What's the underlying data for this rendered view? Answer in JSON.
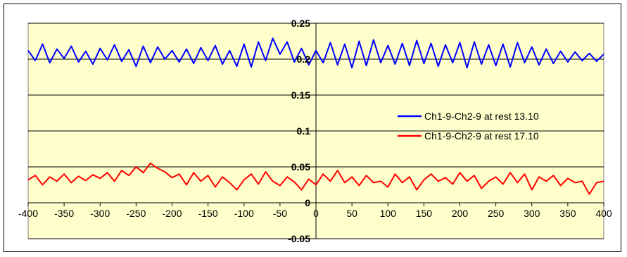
{
  "chart_data": {
    "type": "line",
    "x_axis": {
      "range": [
        -400,
        400
      ],
      "ticks": [
        -400,
        -350,
        -300,
        -250,
        -200,
        -150,
        -100,
        -50,
        0,
        50,
        100,
        150,
        200,
        250,
        300,
        350,
        400
      ],
      "tick_labels": [
        "-400",
        "-350",
        "-300",
        "-250",
        "-200",
        "-150",
        "-100",
        "-50",
        "0",
        "50",
        "100",
        "150",
        "200",
        "250",
        "300",
        "350",
        "400"
      ]
    },
    "y_axis": {
      "range": [
        -0.05,
        0.25
      ],
      "ticks": [
        -0.05,
        0,
        0.05,
        0.1,
        0.15,
        0.2,
        0.25
      ],
      "tick_labels": [
        "-0.05",
        "0",
        "0.05",
        "0.1",
        "0.15",
        "0.2",
        "0.25"
      ],
      "grid": true
    },
    "plot_background": "#FFFFCC",
    "grid_color": "#000000",
    "legend": {
      "position": "right"
    },
    "series": [
      {
        "name": "Ch1-9-Ch2-9 at rest 13.10",
        "color": "#0000FF",
        "x": [
          -400,
          -390,
          -380,
          -370,
          -360,
          -350,
          -340,
          -330,
          -320,
          -310,
          -300,
          -290,
          -280,
          -270,
          -260,
          -250,
          -240,
          -230,
          -220,
          -210,
          -200,
          -190,
          -180,
          -170,
          -160,
          -150,
          -140,
          -130,
          -120,
          -110,
          -100,
          -90,
          -80,
          -70,
          -60,
          -50,
          -40,
          -30,
          -20,
          -10,
          0,
          10,
          20,
          30,
          40,
          50,
          60,
          70,
          80,
          90,
          100,
          110,
          120,
          130,
          140,
          150,
          160,
          170,
          180,
          190,
          200,
          210,
          220,
          230,
          240,
          250,
          260,
          270,
          280,
          290,
          300,
          310,
          320,
          330,
          340,
          350,
          360,
          370,
          380,
          390,
          400
        ],
        "y": [
          0.212,
          0.198,
          0.221,
          0.195,
          0.214,
          0.201,
          0.218,
          0.196,
          0.211,
          0.193,
          0.215,
          0.199,
          0.22,
          0.197,
          0.213,
          0.19,
          0.218,
          0.195,
          0.217,
          0.2,
          0.212,
          0.196,
          0.214,
          0.194,
          0.216,
          0.198,
          0.219,
          0.193,
          0.212,
          0.19,
          0.221,
          0.189,
          0.224,
          0.198,
          0.229,
          0.207,
          0.224,
          0.196,
          0.215,
          0.192,
          0.212,
          0.195,
          0.223,
          0.192,
          0.221,
          0.188,
          0.225,
          0.191,
          0.227,
          0.195,
          0.219,
          0.193,
          0.222,
          0.191,
          0.226,
          0.194,
          0.222,
          0.19,
          0.22,
          0.195,
          0.223,
          0.188,
          0.224,
          0.193,
          0.22,
          0.191,
          0.221,
          0.189,
          0.223,
          0.195,
          0.217,
          0.192,
          0.214,
          0.194,
          0.211,
          0.196,
          0.21,
          0.198,
          0.208,
          0.197,
          0.207
        ]
      },
      {
        "name": "Ch1-9-Ch2-9 at rest 17.10",
        "color": "#FF0000",
        "x": [
          -400,
          -390,
          -380,
          -370,
          -360,
          -350,
          -340,
          -330,
          -320,
          -310,
          -300,
          -290,
          -280,
          -270,
          -260,
          -250,
          -240,
          -230,
          -220,
          -210,
          -200,
          -190,
          -180,
          -170,
          -160,
          -150,
          -140,
          -130,
          -120,
          -110,
          -100,
          -90,
          -80,
          -70,
          -60,
          -50,
          -40,
          -30,
          -20,
          -10,
          0,
          10,
          20,
          30,
          40,
          50,
          60,
          70,
          80,
          90,
          100,
          110,
          120,
          130,
          140,
          150,
          160,
          170,
          180,
          190,
          200,
          210,
          220,
          230,
          240,
          250,
          260,
          270,
          280,
          290,
          300,
          310,
          320,
          330,
          340,
          350,
          360,
          370,
          380,
          390,
          400
        ],
        "y": [
          0.032,
          0.038,
          0.025,
          0.036,
          0.03,
          0.04,
          0.028,
          0.037,
          0.031,
          0.039,
          0.034,
          0.042,
          0.03,
          0.045,
          0.038,
          0.05,
          0.042,
          0.055,
          0.048,
          0.043,
          0.035,
          0.04,
          0.025,
          0.042,
          0.03,
          0.038,
          0.022,
          0.036,
          0.028,
          0.018,
          0.032,
          0.04,
          0.026,
          0.043,
          0.03,
          0.024,
          0.036,
          0.029,
          0.018,
          0.033,
          0.025,
          0.04,
          0.03,
          0.045,
          0.028,
          0.036,
          0.024,
          0.038,
          0.028,
          0.03,
          0.022,
          0.04,
          0.028,
          0.036,
          0.018,
          0.032,
          0.04,
          0.03,
          0.035,
          0.026,
          0.042,
          0.03,
          0.038,
          0.02,
          0.03,
          0.036,
          0.026,
          0.042,
          0.028,
          0.04,
          0.018,
          0.036,
          0.03,
          0.038,
          0.024,
          0.034,
          0.028,
          0.03,
          0.012,
          0.028,
          0.03
        ]
      }
    ]
  }
}
